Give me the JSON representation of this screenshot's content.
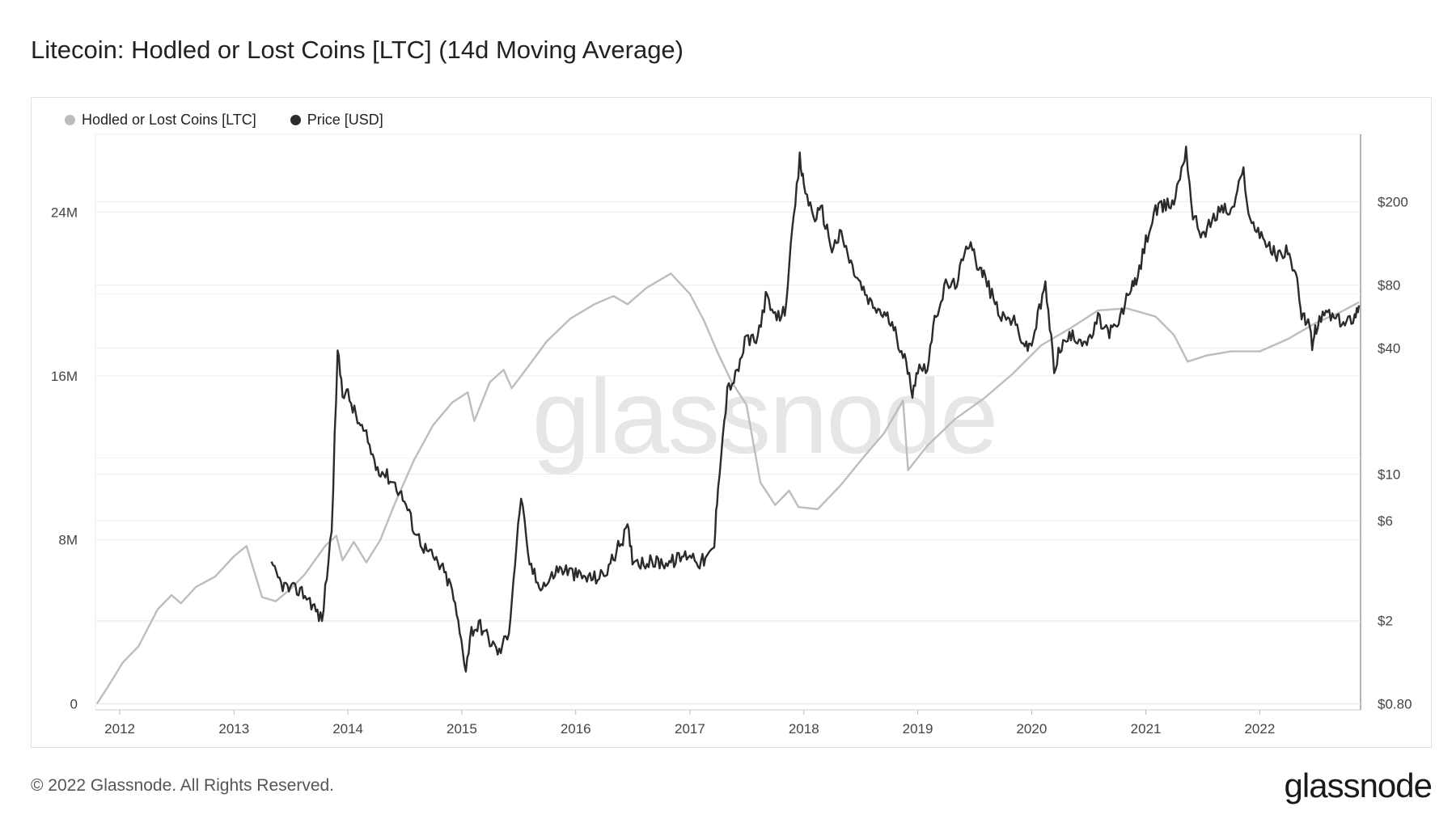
{
  "title": "Litecoin: Hodled or Lost Coins [LTC] (14d Moving Average)",
  "footer": {
    "copyright": "© 2022 Glassnode. All Rights Reserved.",
    "logo": "glassnode"
  },
  "watermark": "glassnode",
  "colors": {
    "hodl": "#bdbdbd",
    "price": "#2b2b2b",
    "grid": "#ebebeb"
  },
  "chart_data": {
    "type": "line",
    "legend_placement": "top-left",
    "grid": true,
    "xlim": [
      "2011-10-15",
      "2022-11-20"
    ],
    "x_ticks": [
      "2012",
      "2013",
      "2014",
      "2015",
      "2016",
      "2017",
      "2018",
      "2019",
      "2020",
      "2021",
      "2022"
    ],
    "y_left": {
      "label": "",
      "ticks": [
        "0",
        "8M",
        "16M",
        "24M"
      ],
      "tick_values": [
        0,
        8000000,
        16000000,
        24000000
      ],
      "range": [
        -300000,
        27800000
      ]
    },
    "y_right": {
      "label": "",
      "scale": "log",
      "ticks": [
        "$0.80",
        "$2",
        "$6",
        "$10",
        "$40",
        "$80",
        "$200"
      ],
      "tick_values": [
        0.8,
        2,
        6,
        10,
        40,
        80,
        200
      ],
      "range": [
        0.75,
        420
      ]
    },
    "series": [
      {
        "name": "Hodled or Lost Coins [LTC]",
        "axis": "left",
        "points": [
          [
            "2011-10-20",
            0
          ],
          [
            "2011-12-01",
            1000000
          ],
          [
            "2012-01-10",
            2000000
          ],
          [
            "2012-03-01",
            2800000
          ],
          [
            "2012-05-01",
            4600000
          ],
          [
            "2012-06-15",
            5300000
          ],
          [
            "2012-07-15",
            4900000
          ],
          [
            "2012-09-01",
            5700000
          ],
          [
            "2012-11-01",
            6200000
          ],
          [
            "2013-01-01",
            7200000
          ],
          [
            "2013-02-10",
            7700000
          ],
          [
            "2013-04-01",
            5200000
          ],
          [
            "2013-05-15",
            5000000
          ],
          [
            "2013-07-01",
            5600000
          ],
          [
            "2013-08-15",
            6300000
          ],
          [
            "2013-10-20",
            7700000
          ],
          [
            "2013-11-25",
            8200000
          ],
          [
            "2013-12-15",
            7000000
          ],
          [
            "2014-01-20",
            7900000
          ],
          [
            "2014-03-01",
            6900000
          ],
          [
            "2014-04-15",
            8000000
          ],
          [
            "2014-06-01",
            9800000
          ],
          [
            "2014-08-01",
            11900000
          ],
          [
            "2014-10-01",
            13600000
          ],
          [
            "2014-12-01",
            14700000
          ],
          [
            "2015-01-20",
            15200000
          ],
          [
            "2015-02-10",
            13800000
          ],
          [
            "2015-04-01",
            15700000
          ],
          [
            "2015-05-15",
            16300000
          ],
          [
            "2015-06-10",
            15400000
          ],
          [
            "2015-07-15",
            16100000
          ],
          [
            "2015-10-01",
            17700000
          ],
          [
            "2015-12-15",
            18800000
          ],
          [
            "2016-03-01",
            19500000
          ],
          [
            "2016-05-01",
            19900000
          ],
          [
            "2016-06-15",
            19500000
          ],
          [
            "2016-08-15",
            20300000
          ],
          [
            "2016-11-01",
            21000000
          ],
          [
            "2017-01-01",
            20000000
          ],
          [
            "2017-02-15",
            18700000
          ],
          [
            "2017-04-01",
            17100000
          ],
          [
            "2017-05-15",
            15700000
          ],
          [
            "2017-07-01",
            14600000
          ],
          [
            "2017-08-15",
            10800000
          ],
          [
            "2017-10-01",
            9700000
          ],
          [
            "2017-11-15",
            10400000
          ],
          [
            "2017-12-15",
            9600000
          ],
          [
            "2018-02-15",
            9500000
          ],
          [
            "2018-05-01",
            10700000
          ],
          [
            "2018-07-15",
            12100000
          ],
          [
            "2018-09-15",
            13200000
          ],
          [
            "2018-11-15",
            14800000
          ],
          [
            "2018-12-01",
            11400000
          ],
          [
            "2019-02-01",
            12600000
          ],
          [
            "2019-05-01",
            13900000
          ],
          [
            "2019-08-01",
            14900000
          ],
          [
            "2019-11-01",
            16100000
          ],
          [
            "2020-02-01",
            17500000
          ],
          [
            "2020-05-01",
            18300000
          ],
          [
            "2020-08-01",
            19200000
          ],
          [
            "2020-11-01",
            19300000
          ],
          [
            "2021-02-01",
            18900000
          ],
          [
            "2021-04-01",
            18000000
          ],
          [
            "2021-05-15",
            16700000
          ],
          [
            "2021-07-15",
            17000000
          ],
          [
            "2021-10-01",
            17200000
          ],
          [
            "2022-01-01",
            17200000
          ],
          [
            "2022-04-01",
            17800000
          ],
          [
            "2022-07-01",
            18600000
          ],
          [
            "2022-09-15",
            19100000
          ],
          [
            "2022-11-15",
            19600000
          ]
        ]
      },
      {
        "name": "Price [USD]",
        "axis": "right",
        "points": [
          [
            "2013-05-01",
            3.6
          ],
          [
            "2013-06-01",
            3.0
          ],
          [
            "2013-07-01",
            2.8
          ],
          [
            "2013-08-01",
            2.8
          ],
          [
            "2013-09-01",
            2.5
          ],
          [
            "2013-10-10",
            2.0
          ],
          [
            "2013-11-10",
            5.5
          ],
          [
            "2013-11-29",
            38
          ],
          [
            "2013-12-15",
            25
          ],
          [
            "2014-01-01",
            24
          ],
          [
            "2014-02-01",
            18
          ],
          [
            "2014-03-01",
            15
          ],
          [
            "2014-04-01",
            11
          ],
          [
            "2014-05-01",
            10
          ],
          [
            "2014-06-01",
            9
          ],
          [
            "2014-07-01",
            7.5
          ],
          [
            "2014-08-01",
            5.5
          ],
          [
            "2014-09-01",
            4.5
          ],
          [
            "2014-10-01",
            4
          ],
          [
            "2014-11-01",
            3.5
          ],
          [
            "2014-12-01",
            2.8
          ],
          [
            "2015-01-14",
            1.2
          ],
          [
            "2015-02-01",
            1.8
          ],
          [
            "2015-03-01",
            1.9
          ],
          [
            "2015-04-01",
            1.6
          ],
          [
            "2015-05-01",
            1.4
          ],
          [
            "2015-06-01",
            1.8
          ],
          [
            "2015-07-10",
            8
          ],
          [
            "2015-08-01",
            4
          ],
          [
            "2015-09-01",
            3
          ],
          [
            "2015-10-01",
            3.0
          ],
          [
            "2015-11-01",
            3.5
          ],
          [
            "2015-12-01",
            3.5
          ],
          [
            "2016-01-01",
            3.3
          ],
          [
            "2016-02-01",
            3.2
          ],
          [
            "2016-03-01",
            3.2
          ],
          [
            "2016-04-01",
            3.3
          ],
          [
            "2016-05-01",
            4.0
          ],
          [
            "2016-06-15",
            5.5
          ],
          [
            "2016-07-01",
            4.0
          ],
          [
            "2016-08-01",
            3.8
          ],
          [
            "2016-09-01",
            3.8
          ],
          [
            "2016-10-01",
            3.8
          ],
          [
            "2016-11-01",
            3.8
          ],
          [
            "2017-01-01",
            4.2
          ],
          [
            "2017-02-01",
            3.8
          ],
          [
            "2017-03-01",
            4.0
          ],
          [
            "2017-03-20",
            4.5
          ],
          [
            "2017-04-01",
            9
          ],
          [
            "2017-05-01",
            25
          ],
          [
            "2017-06-01",
            30
          ],
          [
            "2017-07-01",
            45
          ],
          [
            "2017-08-01",
            42
          ],
          [
            "2017-09-01",
            70
          ],
          [
            "2017-10-01",
            55
          ],
          [
            "2017-11-01",
            60
          ],
          [
            "2017-12-19",
            320
          ],
          [
            "2018-01-01",
            240
          ],
          [
            "2018-02-01",
            170
          ],
          [
            "2018-03-01",
            180
          ],
          [
            "2018-04-01",
            120
          ],
          [
            "2018-05-01",
            140
          ],
          [
            "2018-06-01",
            100
          ],
          [
            "2018-07-01",
            80
          ],
          [
            "2018-08-01",
            65
          ],
          [
            "2018-09-01",
            60
          ],
          [
            "2018-10-01",
            55
          ],
          [
            "2018-11-15",
            38
          ],
          [
            "2018-12-15",
            25
          ],
          [
            "2019-01-01",
            32
          ],
          [
            "2019-02-01",
            33
          ],
          [
            "2019-03-01",
            58
          ],
          [
            "2019-04-01",
            80
          ],
          [
            "2019-05-01",
            80
          ],
          [
            "2019-06-20",
            135
          ],
          [
            "2019-07-15",
            95
          ],
          [
            "2019-08-01",
            90
          ],
          [
            "2019-09-01",
            68
          ],
          [
            "2019-10-01",
            55
          ],
          [
            "2019-11-01",
            55
          ],
          [
            "2019-12-15",
            40
          ],
          [
            "2020-01-01",
            42
          ],
          [
            "2020-02-14",
            80
          ],
          [
            "2020-03-13",
            32
          ],
          [
            "2020-04-01",
            40
          ],
          [
            "2020-05-01",
            45
          ],
          [
            "2020-06-01",
            45
          ],
          [
            "2020-07-01",
            42
          ],
          [
            "2020-08-01",
            55
          ],
          [
            "2020-09-01",
            48
          ],
          [
            "2020-10-01",
            50
          ],
          [
            "2020-11-15",
            80
          ],
          [
            "2020-12-01",
            80
          ],
          [
            "2021-01-01",
            130
          ],
          [
            "2021-02-01",
            180
          ],
          [
            "2021-03-01",
            190
          ],
          [
            "2021-04-01",
            200
          ],
          [
            "2021-05-10",
            360
          ],
          [
            "2021-06-01",
            170
          ],
          [
            "2021-07-01",
            140
          ],
          [
            "2021-08-01",
            160
          ],
          [
            "2021-09-01",
            190
          ],
          [
            "2021-10-01",
            175
          ],
          [
            "2021-11-10",
            280
          ],
          [
            "2021-12-01",
            160
          ],
          [
            "2022-01-01",
            145
          ],
          [
            "2022-02-01",
            120
          ],
          [
            "2022-03-01",
            110
          ],
          [
            "2022-04-01",
            120
          ],
          [
            "2022-05-01",
            80
          ],
          [
            "2022-05-15",
            55
          ],
          [
            "2022-06-01",
            56
          ],
          [
            "2022-06-18",
            42
          ],
          [
            "2022-07-01",
            50
          ],
          [
            "2022-08-01",
            60
          ],
          [
            "2022-09-01",
            55
          ],
          [
            "2022-10-01",
            52
          ],
          [
            "2022-11-01",
            58
          ],
          [
            "2022-11-15",
            64
          ]
        ]
      }
    ]
  }
}
